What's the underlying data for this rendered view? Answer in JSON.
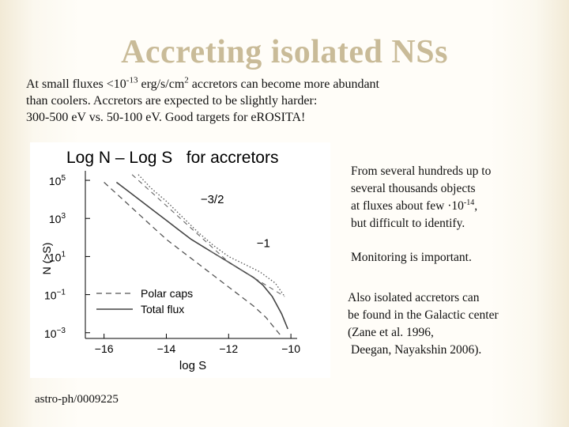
{
  "slide": {
    "title": "Accreting isolated NSs",
    "intro": {
      "l1a": "At small fluxes <10",
      "l1sup": "-13",
      "l1b": " erg/s/cm",
      "l1sup2": "2",
      "l1c": " accretors can become more abundant",
      "l2": "than coolers. Accretors are expected to be slightly harder:",
      "l3": "300-500 eV vs. 50-100 eV. Good targets for eROSITA!"
    },
    "side": {
      "p1l1": "From several hundreds up to",
      "p1l2": "several thousands objects",
      "p1l3a": "at fluxes about few ·10",
      "p1l3sup": "-14",
      "p1l3b": ",",
      "p1l4": "but difficult to identify.",
      "p2": "Monitoring is important.",
      "p3l1": "Also isolated accretors can",
      "p3l2": "be found in the Galactic center",
      "p3l3": "(Zane et al. 1996,",
      "p3l4": "Deegan, Nayakshin 2006)."
    },
    "reference": "astro-ph/0009225"
  },
  "chart_data": {
    "type": "line",
    "title": "Log N – Log S   for accretors",
    "xlabel": "log S",
    "ylabel": "N (>S)",
    "xlim": [
      -16.6,
      -9.8
    ],
    "ylim": [
      -3.3,
      5.5
    ],
    "x_ticks": [
      -16,
      -14,
      -12,
      -10
    ],
    "x_tick_labels": [
      "−16",
      "−14",
      "−12",
      "−10"
    ],
    "y_ticks": [
      -3,
      -1,
      1,
      3,
      5
    ],
    "y_tick_labels": [
      {
        "base": "10",
        "exp": "−3"
      },
      {
        "base": "10",
        "exp": "−1"
      },
      {
        "base": "10",
        "exp": "1"
      },
      {
        "base": "10",
        "exp": "3"
      },
      {
        "base": "10",
        "exp": "5"
      }
    ],
    "annotations": [
      {
        "text": "−3/2",
        "x": -12.9,
        "y": 3.8
      },
      {
        "text": "−1",
        "x": -11.1,
        "y": 1.5
      }
    ],
    "legend": {
      "placement": "bottom-left",
      "entries": [
        {
          "label": "Polar caps",
          "style": "dashed"
        },
        {
          "label": "Total flux",
          "style": "solid"
        }
      ]
    },
    "series": [
      {
        "style": "solid",
        "x": [
          -15.6,
          -15.2,
          -14.8,
          -14.4,
          -14.0,
          -13.6,
          -13.2,
          -12.8,
          -12.4,
          -12.0,
          -11.6,
          -11.2,
          -10.9,
          -10.6,
          -10.3,
          -10.1
        ],
        "y": [
          4.9,
          4.4,
          3.9,
          3.4,
          2.9,
          2.4,
          1.9,
          1.5,
          1.1,
          0.7,
          0.3,
          -0.1,
          -0.5,
          -1.1,
          -2.0,
          -2.8
        ]
      },
      {
        "style": "dashed",
        "x": [
          -16.0,
          -15.6,
          -15.2,
          -14.8,
          -14.4,
          -14.0,
          -13.6,
          -13.2,
          -12.8,
          -12.4,
          -12.0,
          -11.6,
          -11.2,
          -10.8,
          -10.5,
          -10.3
        ],
        "y": [
          4.9,
          4.3,
          3.7,
          3.1,
          2.5,
          1.9,
          1.4,
          0.9,
          0.4,
          -0.1,
          -0.6,
          -1.1,
          -1.6,
          -2.2,
          -2.8,
          -3.2
        ]
      },
      {
        "style": "dotted",
        "x": [
          -14.9,
          -14.5,
          -14.0,
          -13.5,
          -13.0,
          -12.5,
          -12.0,
          -11.5,
          -11.0,
          -10.5,
          -10.2
        ],
        "y": [
          5.3,
          4.6,
          3.9,
          3.1,
          2.3,
          1.6,
          1.0,
          0.6,
          0.2,
          -0.4,
          -1.1
        ]
      },
      {
        "style": "dashed-guide",
        "x": [
          -15.1,
          -12.0
        ],
        "y": [
          5.3,
          0.7
        ]
      },
      {
        "style": "dashed-guide",
        "x": [
          -12.6,
          -10.2
        ],
        "y": [
          1.3,
          -1.1
        ]
      }
    ]
  }
}
